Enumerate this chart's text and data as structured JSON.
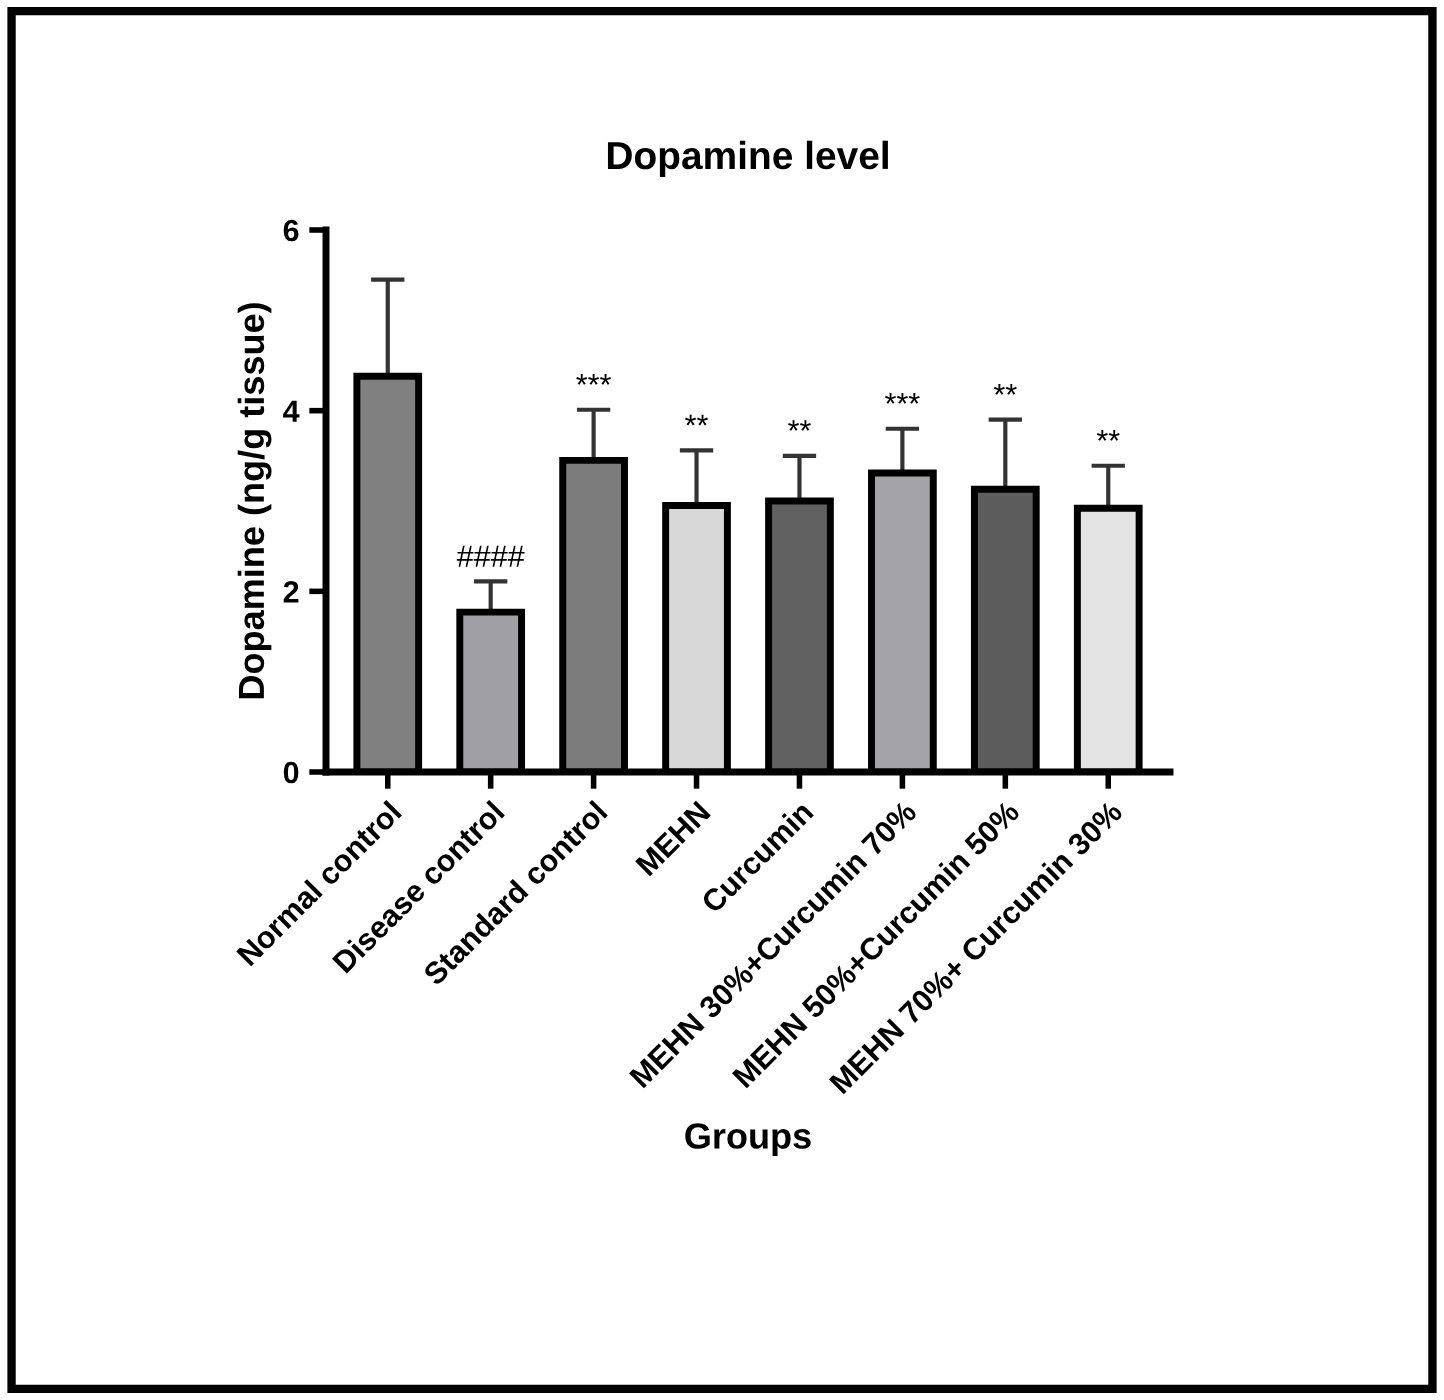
{
  "chart_data": {
    "type": "bar",
    "title": "Dopamine level",
    "xlabel": "Groups",
    "ylabel": "Dopamine (ng/g tissue)",
    "categories": [
      "Normal control",
      "Disease control",
      "Standard control",
      "MEHN",
      "Curcumin",
      "MEHN 30%+Curcumin 70%",
      "MEHN 50%+Curcumin 50%",
      "MEHN 70%+ Curcumin 30%"
    ],
    "values": [
      4.38,
      1.77,
      3.45,
      2.95,
      3.0,
      3.31,
      3.13,
      2.92
    ],
    "errors": [
      [
        4.38,
        5.45
      ],
      [
        1.77,
        2.11
      ],
      [
        3.45,
        4.01
      ],
      [
        2.95,
        3.56
      ],
      [
        3.0,
        3.5
      ],
      [
        3.31,
        3.8
      ],
      [
        3.13,
        3.9
      ],
      [
        2.92,
        3.39
      ]
    ],
    "colors": [
      "#808080",
      "#a0a0a4",
      "#7c7c7c",
      "#d8d8d8",
      "#606060",
      "#a4a4a8",
      "#5c5c5c",
      "#e4e4e4"
    ],
    "ylim": [
      0,
      6
    ],
    "yticks": [
      0,
      2,
      4,
      6
    ],
    "grid": false,
    "annotations": [
      {
        "text": "####",
        "x": "Disease control",
        "y": 2.11
      },
      {
        "text": "***",
        "x": "Standard control",
        "y": 4.01
      },
      {
        "text": "**",
        "x": "MEHN",
        "y": 3.56
      },
      {
        "text": "**",
        "x": "Curcumin",
        "y": 3.5
      },
      {
        "text": "***",
        "x": "MEHN 30%+Curcumin 70%",
        "y": 3.8
      },
      {
        "text": "**",
        "x": "MEHN 50%+Curcumin 50%",
        "y": 3.9
      },
      {
        "text": "**",
        "x": "MEHN 70%+ Curcumin 30%",
        "y": 3.39
      }
    ]
  }
}
